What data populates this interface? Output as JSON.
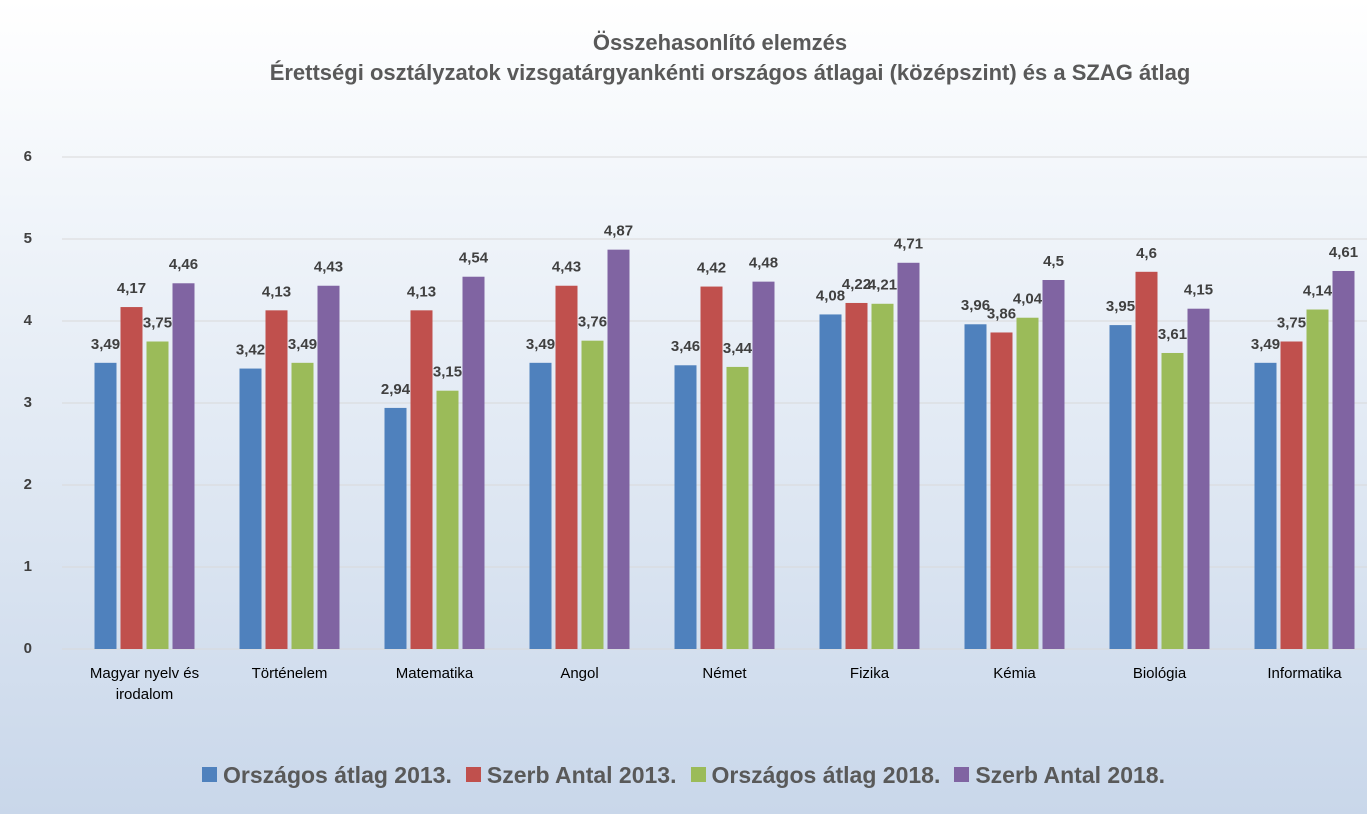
{
  "chart_data": {
    "type": "bar",
    "title": "Összehasonlító elemzés",
    "subtitle": "Érettségi osztályzatok vizsgatárgyankénti országos átlagai (középszint) és a SZAG átlag",
    "categories": [
      "Magyar nyelv és irodalom",
      "Történelem",
      "Matematika",
      "Angol",
      "Német",
      "Fizika",
      "Kémia",
      "Biológia",
      "Informatika"
    ],
    "series": [
      {
        "name": "Országos átlag 2013.",
        "color": "#4f81bd",
        "values": [
          3.49,
          3.42,
          2.94,
          3.49,
          3.46,
          4.08,
          3.96,
          3.95,
          3.49
        ],
        "value_labels": [
          "3,49",
          "3,42",
          "2,94",
          "3,49",
          "3,46",
          "4,08",
          "3,96",
          "3,95",
          "3,49"
        ]
      },
      {
        "name": "Szerb Antal 2013.",
        "color": "#c0504d",
        "values": [
          4.17,
          4.13,
          4.13,
          4.43,
          4.42,
          4.22,
          3.86,
          4.6,
          3.75
        ],
        "value_labels": [
          "4,17",
          "4,13",
          "4,13",
          "4,43",
          "4,42",
          "4,22",
          "3,86",
          "4,6",
          "3,75"
        ]
      },
      {
        "name": "Országos átlag 2018.",
        "color": "#9bbb59",
        "values": [
          3.75,
          3.49,
          3.15,
          3.76,
          3.44,
          4.21,
          4.04,
          3.61,
          4.14
        ],
        "value_labels": [
          "3,75",
          "3,49",
          "3,15",
          "3,76",
          "3,44",
          "4,21",
          "4,04",
          "3,61",
          "4,14"
        ]
      },
      {
        "name": "Szerb Antal 2018.",
        "color": "#8064a2",
        "values": [
          4.46,
          4.43,
          4.54,
          4.87,
          4.48,
          4.71,
          4.5,
          4.15,
          4.61
        ],
        "value_labels": [
          "4,46",
          "4,43",
          "4,54",
          "4,87",
          "4,48",
          "4,71",
          "4,5",
          "4,15",
          "4,61"
        ]
      }
    ],
    "ylim": [
      0,
      6
    ],
    "yticks": [
      0,
      1,
      2,
      3,
      4,
      5,
      6
    ],
    "grid": true,
    "legend": "bottom"
  }
}
